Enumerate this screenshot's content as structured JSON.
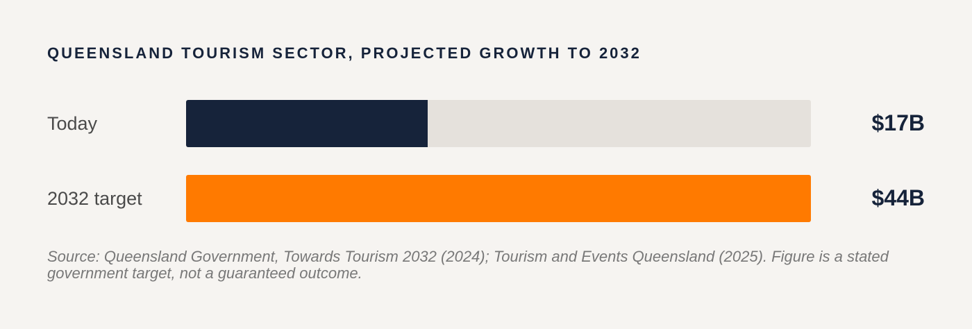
{
  "chart_data": {
    "type": "bar",
    "orientation": "horizontal",
    "title": "QUEENSLAND TOURISM SECTOR, PROJECTED GROWTH TO 2032",
    "categories": [
      "Today",
      "2032 target"
    ],
    "values": [
      17,
      44
    ],
    "value_labels": [
      "$17B",
      "$44B"
    ],
    "unit": "billion AUD",
    "xlim": [
      0,
      44
    ],
    "grid": false,
    "legend": "none",
    "colors": [
      "#16233a",
      "#ff7a00"
    ],
    "track_color": "#e5e1dc"
  },
  "source": "Source: Queensland Government, Towards Tourism 2032 (2024); Tourism and Events Queensland (2025). Figure is a stated government target, not a guaranteed outcome."
}
